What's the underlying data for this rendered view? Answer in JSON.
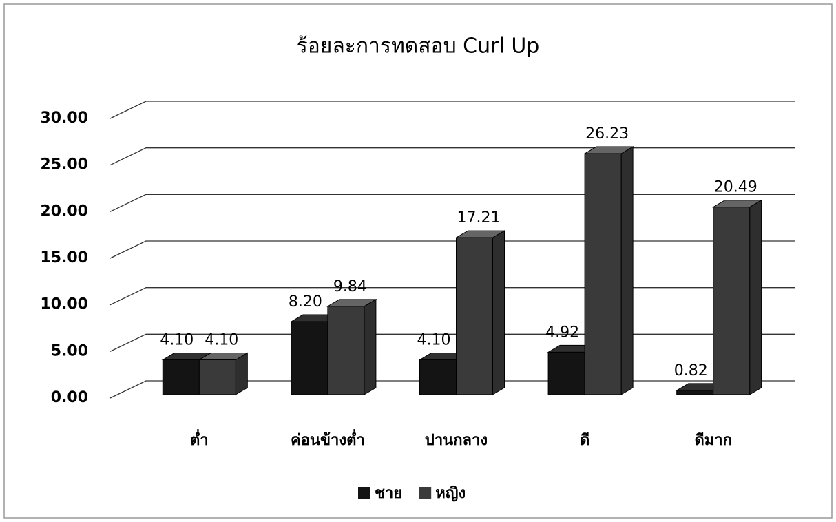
{
  "chart_data": {
    "type": "bar3d",
    "title": "ร้อยละการทดสอบ Curl Up",
    "categories": [
      "ต่ำ",
      "ค่อนข้างต่ำ",
      "ปานกลาง",
      "ดี",
      "ดีมาก"
    ],
    "series": [
      {
        "name": "ชาย",
        "color": "#141414",
        "values": [
          4.1,
          8.2,
          4.1,
          4.92,
          0.82
        ],
        "value_labels": [
          "4.10",
          "8.20",
          "4.10",
          "4.92",
          "0.82"
        ]
      },
      {
        "name": "หญิง",
        "color": "#3a3a3a",
        "values": [
          4.1,
          9.84,
          17.21,
          26.23,
          20.49
        ],
        "value_labels": [
          "4.10",
          "9.84",
          "17.21",
          "26.23",
          "20.49"
        ]
      }
    ],
    "ylim": [
      0,
      30
    ],
    "yticks": [
      {
        "value": 0,
        "label": "0.00"
      },
      {
        "value": 5,
        "label": "5.00"
      },
      {
        "value": 10,
        "label": "10.00"
      },
      {
        "value": 15,
        "label": "15.00"
      },
      {
        "value": 20,
        "label": "20.00"
      },
      {
        "value": 25,
        "label": "25.00"
      },
      {
        "value": 30,
        "label": "30.00"
      }
    ],
    "grid": true,
    "legend": "bottom"
  }
}
